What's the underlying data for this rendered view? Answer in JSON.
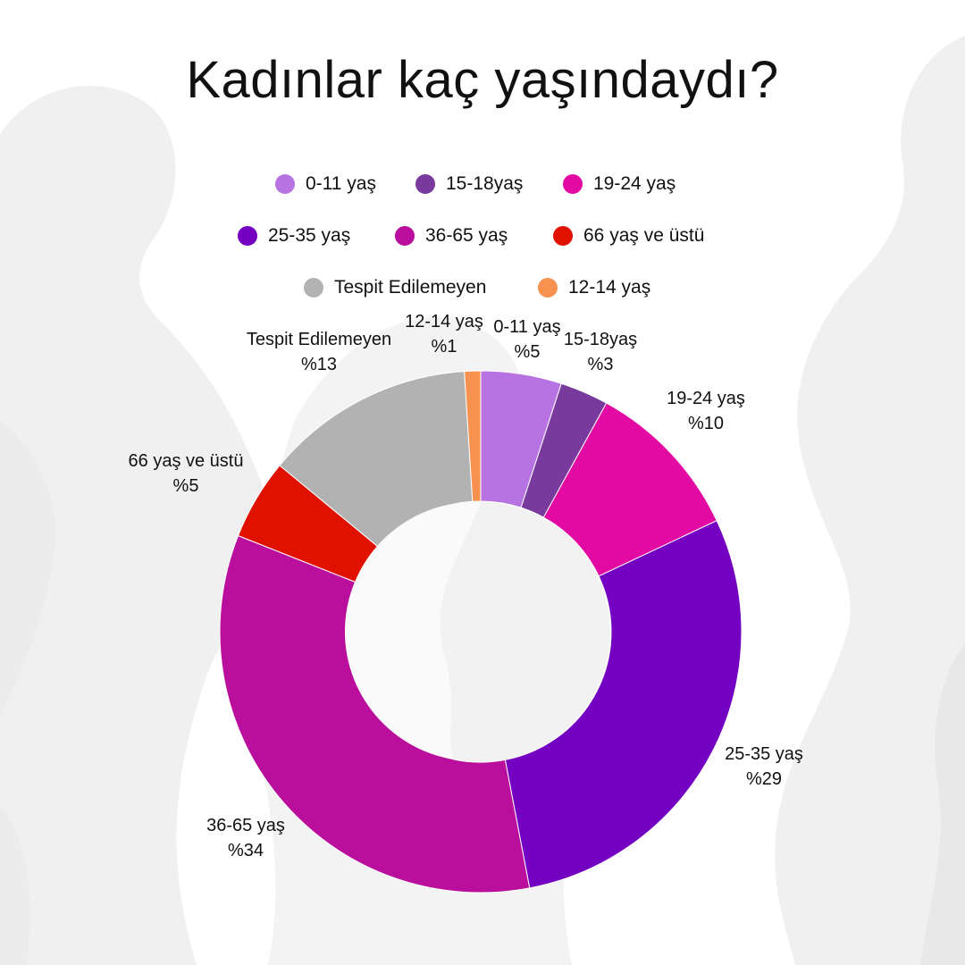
{
  "chart_data": {
    "type": "pie",
    "variant": "donut",
    "title": "Kadınlar kaç yaşındaydı?",
    "legend_position": "top",
    "slices": [
      {
        "name": "0-11 yaş",
        "value": 5,
        "value_label": "%5",
        "color": "#b873e3"
      },
      {
        "name": "15-18yaş",
        "value": 3,
        "value_label": "%3",
        "color": "#783a9c"
      },
      {
        "name": "19-24 yaş",
        "value": 10,
        "value_label": "%10",
        "color": "#e20aa3"
      },
      {
        "name": "25-35 yaş",
        "value": 29,
        "value_label": "%29",
        "color": "#7400c2"
      },
      {
        "name": "36-65 yaş",
        "value": 34,
        "value_label": "%34",
        "color": "#b90f9c"
      },
      {
        "name": "66 yaş ve üstü",
        "value": 5,
        "value_label": "%5",
        "color": "#e11100"
      },
      {
        "name": "Tespit Edilemeyen",
        "value": 13,
        "value_label": "%13",
        "color": "#b2b2b2"
      },
      {
        "name": "12-14 yaş",
        "value": 1,
        "value_label": "%1",
        "color": "#f7914f"
      }
    ]
  }
}
